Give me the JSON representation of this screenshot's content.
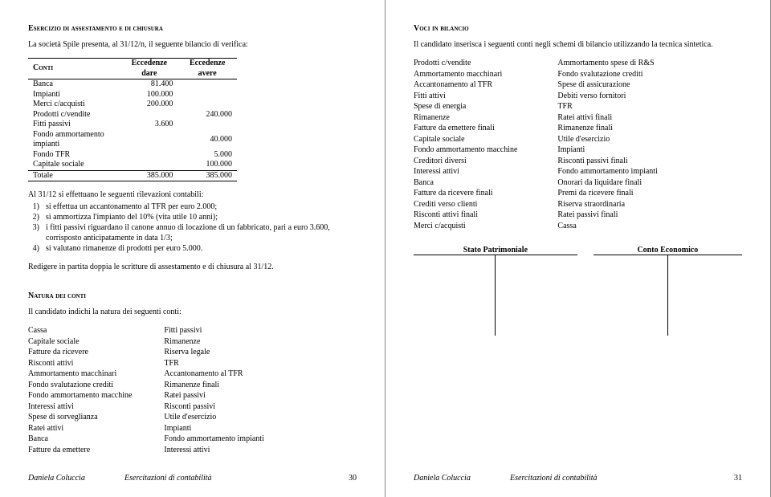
{
  "left": {
    "heading": "Esercizio di assestamento e di chiusura",
    "intro": "La società Spile presenta, al 31/12/n, il seguente bilancio di verifica:",
    "table": {
      "headers": [
        "Conti",
        "Eccedenze dare",
        "Eccedenze avere"
      ],
      "rows": [
        [
          "Banca",
          "81.400",
          ""
        ],
        [
          "Impianti",
          "100.000",
          ""
        ],
        [
          "Merci c/acquisti",
          "200.000",
          ""
        ],
        [
          "Prodotti c/vendite",
          "",
          "240.000"
        ],
        [
          "Fitti passivi",
          "3.600",
          ""
        ],
        [
          "Fondo ammortamento impianti",
          "",
          "40.000"
        ],
        [
          "Fondo TFR",
          "",
          "5.000"
        ],
        [
          "Capitale sociale",
          "",
          "100.000"
        ]
      ],
      "total": [
        "Totale",
        "385.000",
        "385.000"
      ]
    },
    "list_intro": "Al 31/12 si effettuano le seguenti rilevazioni contabili:",
    "items": [
      {
        "n": "1)",
        "t": "si effettua un accantonamento al TFR per euro 2.000;"
      },
      {
        "n": "2)",
        "t": "si ammortizza l'impianto del 10% (vita utile 10 anni);"
      },
      {
        "n": "3)",
        "t": "i fitti passivi riguardano il canone annuo di locazione di un fabbricato, pari a euro 3.600, corrisposto anticipatamente in data 1/3;"
      },
      {
        "n": "4)",
        "t": "si valutano rimanenze di prodotti per euro 5.000."
      }
    ],
    "closing": "Redigere in partita doppia le scritture di assestamento e di chiusura al 31/12.",
    "natura_heading": "Natura dei conti",
    "natura_intro": "Il candidato indichi la natura dei seguenti conti:",
    "natura_col1": [
      "Cassa",
      "Capitale sociale",
      "Fatture da ricevere",
      "Risconti attivi",
      "Ammortamento macchinari",
      "Fondo svalutazione crediti",
      "Fondo ammortamento macchine",
      "Interessi attivi",
      "Spese di sorveglianza",
      "Ratei attivi",
      "Banca",
      "Fatture da emettere"
    ],
    "natura_col2": [
      "Fitti passivi",
      "Rimanenze",
      "Riserva legale",
      "TFR",
      "Accantonamento al TFR",
      "Rimanenze finali",
      "Ratei passivi",
      "Risconti passivi",
      "Utile d'esercizio",
      "Impianti",
      "Fondo ammortamento impianti",
      "Interessi attivi"
    ],
    "footer_author": "Daniela Coluccia",
    "footer_title": "Esercitazioni di contabilità",
    "footer_page": "30"
  },
  "right": {
    "heading": "Voci in bilancio",
    "intro": "Il candidato inserisca i seguenti conti negli schemi di bilancio utilizzando la tecnica sintetica.",
    "col1": [
      "Prodotti c/vendite",
      "Ammortamento macchinari",
      "Accantonamento al TFR",
      "Fitti attivi",
      "Spese di energia",
      "Rimanenze",
      "Fatture da emettere finali",
      "Capitale sociale",
      "Fondo ammortamento macchine",
      "Creditori diversi",
      "Interessi attivi",
      "Banca",
      "Fatture da ricevere finali",
      "Crediti verso clienti",
      "Risconti attivi finali",
      "Merci c/acquisti"
    ],
    "col2": [
      "Ammortamento spese di R&S",
      "Fondo svalutazione crediti",
      "Spese di assicurazione",
      "Debiti verso fornitori",
      "TFR",
      "Ratei attivi finali",
      "Rimanenze finali",
      "Utile d'esercizio",
      "Impianti",
      "Risconti passivi finali",
      "Fondo ammortamento impianti",
      "Onorari da liquidare finali",
      "Premi da ricevere finali",
      "Riserva straordinaria",
      "Ratei passivi finali",
      "Cassa"
    ],
    "sp_label": "Stato Patrimoniale",
    "ce_label": "Conto Economico",
    "footer_author": "Daniela Coluccia",
    "footer_title": "Esercitazioni di contabilità",
    "footer_page": "31"
  }
}
